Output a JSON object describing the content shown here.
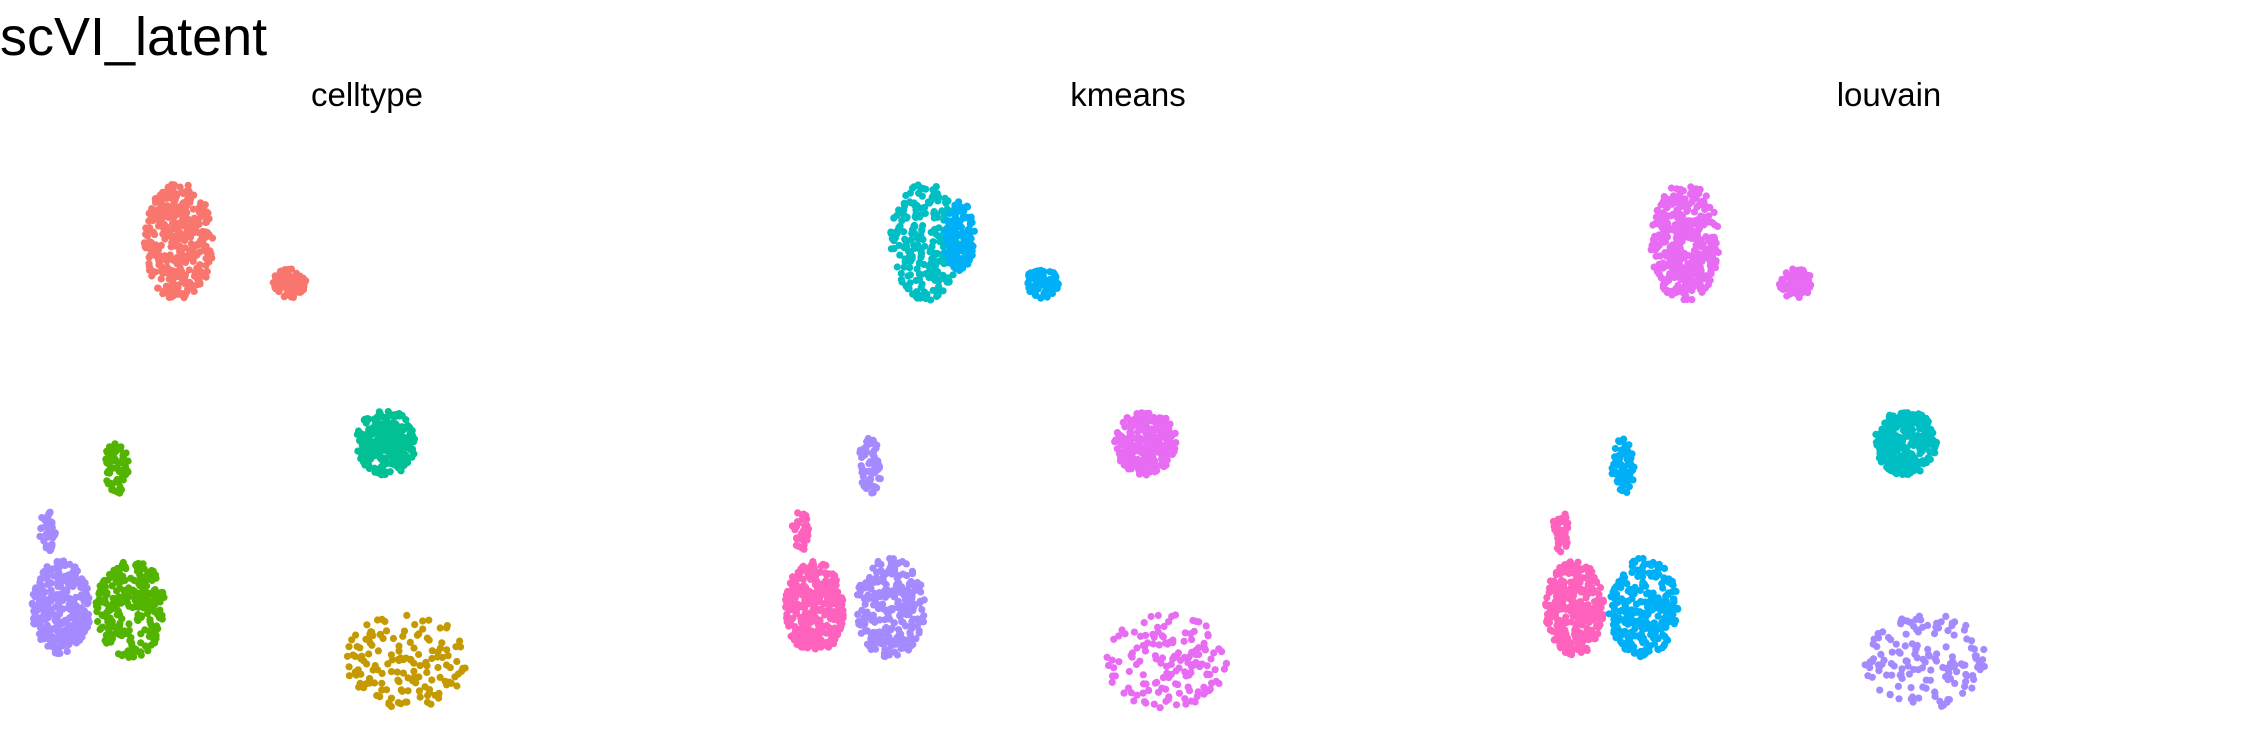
{
  "figure": {
    "title": "scVI_latent"
  },
  "chart_data": [
    {
      "type": "scatter",
      "title": "celltype",
      "xlabel": "",
      "ylabel": "",
      "grid": false,
      "axes_visible": false,
      "legend": "none",
      "clusters": [
        {
          "center": [
            0.23,
            0.19
          ],
          "size": [
            0.1,
            0.2
          ],
          "color": "#F8766D",
          "n": 380
        },
        {
          "center": [
            0.39,
            0.26
          ],
          "size": [
            0.05,
            0.05
          ],
          "color": "#F8766D",
          "n": 90
        },
        {
          "center": [
            0.14,
            0.57
          ],
          "size": [
            0.035,
            0.095
          ],
          "color": "#53B400",
          "n": 70
        },
        {
          "center": [
            0.53,
            0.53
          ],
          "size": [
            0.09,
            0.11
          ],
          "color": "#00C094",
          "n": 260
        },
        {
          "center": [
            0.06,
            0.81
          ],
          "size": [
            0.085,
            0.16
          ],
          "color": "#A58AFF",
          "n": 300
        },
        {
          "center": [
            0.04,
            0.68
          ],
          "size": [
            0.025,
            0.07
          ],
          "color": "#A58AFF",
          "n": 35
        },
        {
          "center": [
            0.16,
            0.81
          ],
          "size": [
            0.1,
            0.17
          ],
          "color": "#53B400",
          "n": 260
        },
        {
          "center": [
            0.56,
            0.9
          ],
          "size": [
            0.18,
            0.16
          ],
          "color": "#C49A00",
          "n": 150
        }
      ]
    },
    {
      "type": "scatter",
      "title": "kmeans",
      "xlabel": "",
      "ylabel": "",
      "grid": false,
      "axes_visible": false,
      "legend": "none",
      "clusters": [
        {
          "center": [
            0.21,
            0.19
          ],
          "size": [
            0.1,
            0.2
          ],
          "color": "#00BFC4",
          "n": 240
        },
        {
          "center": [
            0.26,
            0.18
          ],
          "size": [
            0.045,
            0.12
          ],
          "color": "#00B0F6",
          "n": 120
        },
        {
          "center": [
            0.38,
            0.26
          ],
          "size": [
            0.05,
            0.05
          ],
          "color": "#00B0F6",
          "n": 90
        },
        {
          "center": [
            0.13,
            0.57
          ],
          "size": [
            0.035,
            0.095
          ],
          "color": "#A58AFF",
          "n": 70
        },
        {
          "center": [
            0.53,
            0.53
          ],
          "size": [
            0.09,
            0.11
          ],
          "color": "#E76BF3",
          "n": 260
        },
        {
          "center": [
            0.05,
            0.81
          ],
          "size": [
            0.085,
            0.16
          ],
          "color": "#FF62BC",
          "n": 300
        },
        {
          "center": [
            0.03,
            0.68
          ],
          "size": [
            0.025,
            0.07
          ],
          "color": "#FF62BC",
          "n": 35
        },
        {
          "center": [
            0.16,
            0.81
          ],
          "size": [
            0.1,
            0.17
          ],
          "color": "#A58AFF",
          "n": 260
        },
        {
          "center": [
            0.56,
            0.9
          ],
          "size": [
            0.18,
            0.16
          ],
          "color": "#E76BF3",
          "n": 150
        }
      ]
    },
    {
      "type": "scatter",
      "title": "louvain",
      "xlabel": "",
      "ylabel": "",
      "grid": false,
      "axes_visible": false,
      "legend": "none",
      "clusters": [
        {
          "center": [
            0.21,
            0.19
          ],
          "size": [
            0.1,
            0.2
          ],
          "color": "#E76BF3",
          "n": 380
        },
        {
          "center": [
            0.37,
            0.26
          ],
          "size": [
            0.05,
            0.05
          ],
          "color": "#E76BF3",
          "n": 90
        },
        {
          "center": [
            0.12,
            0.57
          ],
          "size": [
            0.035,
            0.095
          ],
          "color": "#00B0F6",
          "n": 70
        },
        {
          "center": [
            0.53,
            0.53
          ],
          "size": [
            0.09,
            0.11
          ],
          "color": "#00BFC4",
          "n": 260
        },
        {
          "center": [
            0.05,
            0.81
          ],
          "size": [
            0.085,
            0.16
          ],
          "color": "#FF62BC",
          "n": 300
        },
        {
          "center": [
            0.03,
            0.68
          ],
          "size": [
            0.025,
            0.07
          ],
          "color": "#FF62BC",
          "n": 35
        },
        {
          "center": [
            0.15,
            0.81
          ],
          "size": [
            0.1,
            0.17
          ],
          "color": "#00B0F6",
          "n": 260
        },
        {
          "center": [
            0.56,
            0.9
          ],
          "size": [
            0.18,
            0.16
          ],
          "color": "#A58AFF",
          "n": 150
        }
      ]
    }
  ]
}
